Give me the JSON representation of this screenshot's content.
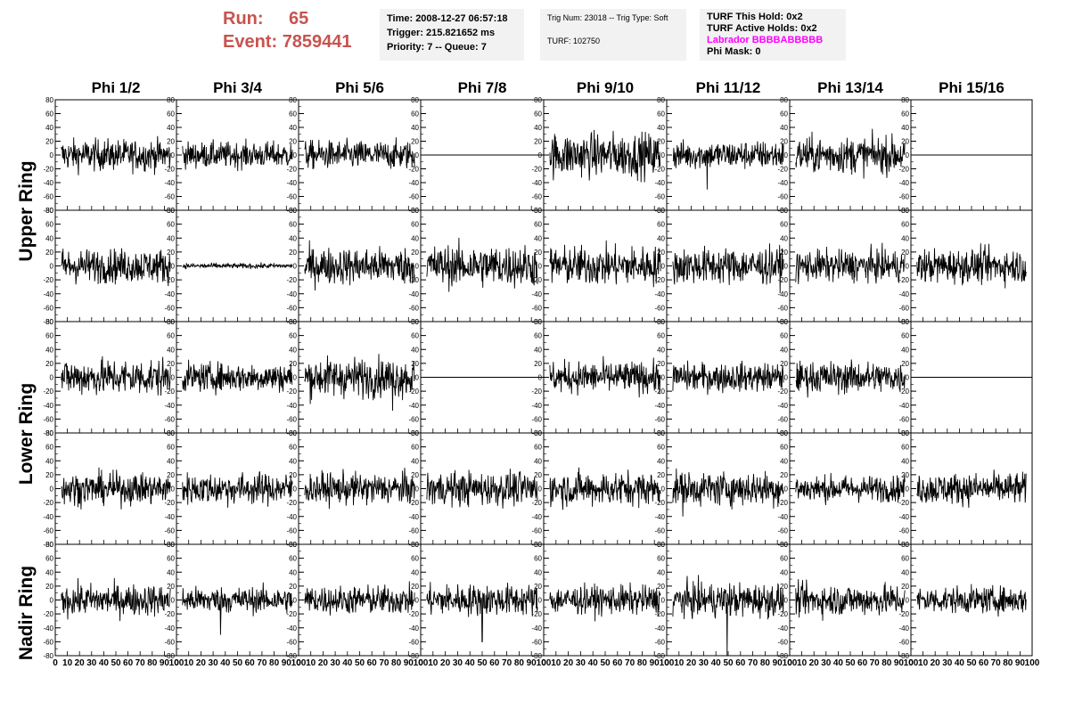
{
  "header": {
    "run_label": "Run:",
    "run_value": "65",
    "event_label": "Event:",
    "event_value": "7859441"
  },
  "info_time": {
    "time": "Time: 2008-12-27 06:57:18",
    "trigger": "Trigger: 215.821652 ms",
    "priority": "Priority: 7 -- Queue: 7"
  },
  "info_trig": {
    "trig": "Trig Num: 23018 -- Trig Type: Soft",
    "turf": "TURF: 102750"
  },
  "info_turf": {
    "this_hold": "TURF This Hold: 0x2",
    "active_holds": "TURF Active Holds: 0x2",
    "labrador": "Labrador BBBBABBBBB",
    "phi_mask": "Phi Mask: 0"
  },
  "colors": {
    "run_text": "#c8534f",
    "labrador": "#ff00ff",
    "info_bg": "#f2f2f2"
  },
  "chart_data": {
    "type": "line",
    "columns": [
      "Phi 1/2",
      "Phi 3/4",
      "Phi 5/6",
      "Phi 7/8",
      "Phi 9/10",
      "Phi 11/12",
      "Phi 13/14",
      "Phi 15/16"
    ],
    "ring_labels": [
      "Upper Ring",
      "Lower Ring",
      "Nadir Ring"
    ],
    "rows": 5,
    "ylim": [
      -80,
      80
    ],
    "xlim": [
      0,
      100
    ],
    "y_ticks": [
      "80",
      "60",
      "40",
      "20",
      "0",
      "-20",
      "-40",
      "-60",
      "-80"
    ],
    "x_ticks": [
      "0",
      "10",
      "20",
      "30",
      "40",
      "50",
      "60",
      "70",
      "80",
      "90",
      "100"
    ],
    "panel_amplitude": [
      [
        12,
        10,
        11,
        0,
        17,
        11,
        14,
        0
      ],
      [
        13,
        2,
        14,
        16,
        15,
        14,
        12,
        13
      ],
      [
        14,
        11,
        15,
        0,
        12,
        11,
        12,
        0
      ],
      [
        12,
        12,
        12,
        13,
        13,
        13,
        10,
        12
      ],
      [
        12,
        10,
        11,
        12,
        11,
        13,
        12,
        10
      ]
    ],
    "spikes": [
      {
        "row": 4,
        "col": 5,
        "x": 49,
        "y": -80
      },
      {
        "row": 4,
        "col": 3,
        "x": 50,
        "y": -60
      },
      {
        "row": 4,
        "col": 1,
        "x": 36,
        "y": -50
      },
      {
        "row": 2,
        "col": 2,
        "x": 77,
        "y": -48
      },
      {
        "row": 2,
        "col": 0,
        "x": 3,
        "y": -50
      },
      {
        "row": 0,
        "col": 5,
        "x": 33,
        "y": -50
      },
      {
        "row": 3,
        "col": 5,
        "x": 13,
        "y": -40
      }
    ]
  }
}
